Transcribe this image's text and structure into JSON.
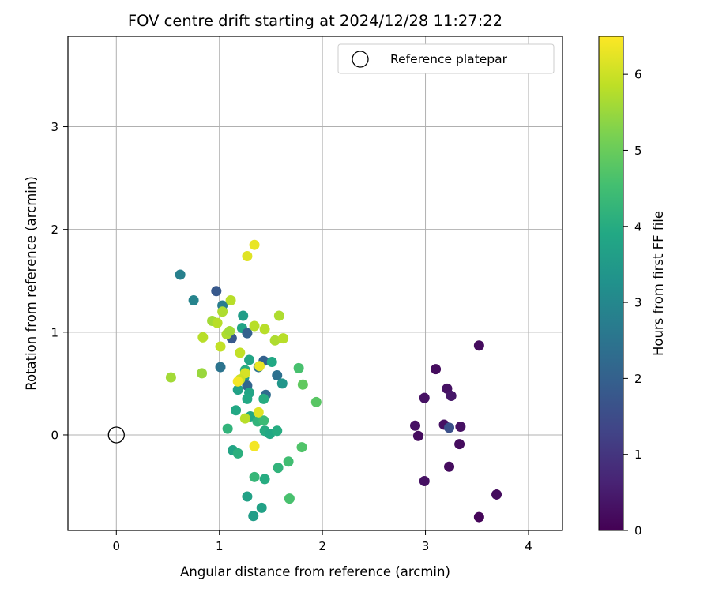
{
  "chart_data": {
    "type": "scatter",
    "title": "FOV centre drift starting at 2024/12/28 11:27:22",
    "xlabel": "Angular distance from reference (arcmin)",
    "ylabel": "Rotation from reference (arcmin)",
    "xlim": [
      -0.47,
      4.33
    ],
    "ylim": [
      -0.93,
      3.88
    ],
    "xticks": [
      0,
      1,
      2,
      3,
      4
    ],
    "yticks": [
      0,
      1,
      2,
      3
    ],
    "grid": true,
    "legend": {
      "position": "top-right",
      "entries": [
        "Reference platepar"
      ]
    },
    "colorbar": {
      "label": "Hours from first FF file",
      "range": [
        0,
        6.5
      ],
      "ticks": [
        0,
        1,
        2,
        3,
        4,
        5,
        6
      ],
      "colormap": "viridis"
    },
    "reference_point": {
      "x": 0,
      "y": 0,
      "label": "Reference platepar"
    },
    "series": [
      {
        "points": [
          {
            "x": 3.1,
            "y": 0.64,
            "c": 0.2
          },
          {
            "x": 3.52,
            "y": 0.87,
            "c": 0.2
          },
          {
            "x": 2.99,
            "y": 0.36,
            "c": 0.3
          },
          {
            "x": 3.21,
            "y": 0.45,
            "c": 0.3
          },
          {
            "x": 3.25,
            "y": 0.38,
            "c": 0.4
          },
          {
            "x": 2.9,
            "y": 0.09,
            "c": 0.3
          },
          {
            "x": 2.93,
            "y": -0.01,
            "c": 0.2
          },
          {
            "x": 3.18,
            "y": 0.1,
            "c": 0.3
          },
          {
            "x": 3.23,
            "y": 0.07,
            "c": 1.6
          },
          {
            "x": 3.34,
            "y": 0.08,
            "c": 0.3
          },
          {
            "x": 3.33,
            "y": -0.09,
            "c": 0.2
          },
          {
            "x": 2.99,
            "y": -0.45,
            "c": 0.3
          },
          {
            "x": 3.23,
            "y": -0.31,
            "c": 0.2
          },
          {
            "x": 3.69,
            "y": -0.58,
            "c": 0.2
          },
          {
            "x": 3.52,
            "y": -0.8,
            "c": 0.1
          },
          {
            "x": 0.62,
            "y": 1.56,
            "c": 2.8
          },
          {
            "x": 0.75,
            "y": 1.31,
            "c": 2.9
          },
          {
            "x": 0.97,
            "y": 1.4,
            "c": 1.8
          },
          {
            "x": 1.03,
            "y": 1.26,
            "c": 2.7
          },
          {
            "x": 1.23,
            "y": 1.16,
            "c": 3.6
          },
          {
            "x": 1.22,
            "y": 1.04,
            "c": 3.8
          },
          {
            "x": 1.27,
            "y": 0.99,
            "c": 2.0
          },
          {
            "x": 1.12,
            "y": 0.94,
            "c": 1.8
          },
          {
            "x": 1.01,
            "y": 0.66,
            "c": 2.5
          },
          {
            "x": 1.29,
            "y": 0.73,
            "c": 3.8
          },
          {
            "x": 1.38,
            "y": 0.66,
            "c": 2.5
          },
          {
            "x": 1.43,
            "y": 0.72,
            "c": 2.0
          },
          {
            "x": 1.51,
            "y": 0.71,
            "c": 3.9
          },
          {
            "x": 1.25,
            "y": 0.63,
            "c": 4.0
          },
          {
            "x": 1.24,
            "y": 0.56,
            "c": 3.5
          },
          {
            "x": 1.18,
            "y": 0.44,
            "c": 3.7
          },
          {
            "x": 1.27,
            "y": 0.48,
            "c": 2.1
          },
          {
            "x": 1.29,
            "y": 0.41,
            "c": 3.8
          },
          {
            "x": 1.45,
            "y": 0.39,
            "c": 2.3
          },
          {
            "x": 1.56,
            "y": 0.58,
            "c": 2.4
          },
          {
            "x": 1.61,
            "y": 0.5,
            "c": 3.4
          },
          {
            "x": 1.77,
            "y": 0.65,
            "c": 4.6
          },
          {
            "x": 1.94,
            "y": 0.32,
            "c": 4.8
          },
          {
            "x": 1.81,
            "y": 0.49,
            "c": 4.9
          },
          {
            "x": 1.43,
            "y": 0.35,
            "c": 4.0
          },
          {
            "x": 1.27,
            "y": 0.35,
            "c": 3.9
          },
          {
            "x": 1.16,
            "y": 0.24,
            "c": 3.9
          },
          {
            "x": 1.3,
            "y": 0.18,
            "c": 3.9
          },
          {
            "x": 1.37,
            "y": 0.13,
            "c": 4.2
          },
          {
            "x": 1.43,
            "y": 0.14,
            "c": 4.4
          },
          {
            "x": 1.08,
            "y": 0.06,
            "c": 4.2
          },
          {
            "x": 1.44,
            "y": 0.04,
            "c": 4.0
          },
          {
            "x": 1.49,
            "y": 0.01,
            "c": 3.9
          },
          {
            "x": 1.56,
            "y": 0.04,
            "c": 4.0
          },
          {
            "x": 1.13,
            "y": -0.15,
            "c": 3.8
          },
          {
            "x": 1.18,
            "y": -0.18,
            "c": 4.1
          },
          {
            "x": 1.8,
            "y": -0.12,
            "c": 4.7
          },
          {
            "x": 1.67,
            "y": -0.26,
            "c": 4.5
          },
          {
            "x": 1.57,
            "y": -0.32,
            "c": 4.2
          },
          {
            "x": 1.34,
            "y": -0.41,
            "c": 4.3
          },
          {
            "x": 1.44,
            "y": -0.43,
            "c": 4.0
          },
          {
            "x": 1.27,
            "y": -0.6,
            "c": 3.7
          },
          {
            "x": 1.68,
            "y": -0.62,
            "c": 4.6
          },
          {
            "x": 1.41,
            "y": -0.71,
            "c": 3.7
          },
          {
            "x": 1.33,
            "y": -0.79,
            "c": 3.6
          },
          {
            "x": 0.53,
            "y": 0.56,
            "c": 5.6
          },
          {
            "x": 0.83,
            "y": 0.6,
            "c": 5.5
          },
          {
            "x": 0.84,
            "y": 0.95,
            "c": 5.8
          },
          {
            "x": 0.93,
            "y": 1.11,
            "c": 5.6
          },
          {
            "x": 0.98,
            "y": 1.09,
            "c": 5.8
          },
          {
            "x": 1.03,
            "y": 1.2,
            "c": 5.7
          },
          {
            "x": 1.11,
            "y": 1.31,
            "c": 5.8
          },
          {
            "x": 1.07,
            "y": 0.98,
            "c": 5.7
          },
          {
            "x": 1.1,
            "y": 1.01,
            "c": 5.6
          },
          {
            "x": 1.01,
            "y": 0.86,
            "c": 5.9
          },
          {
            "x": 1.2,
            "y": 0.8,
            "c": 5.9
          },
          {
            "x": 1.27,
            "y": 1.74,
            "c": 6.2
          },
          {
            "x": 1.34,
            "y": 1.85,
            "c": 6.3
          },
          {
            "x": 1.34,
            "y": 1.06,
            "c": 5.8
          },
          {
            "x": 1.44,
            "y": 1.03,
            "c": 5.8
          },
          {
            "x": 1.58,
            "y": 1.16,
            "c": 5.7
          },
          {
            "x": 1.54,
            "y": 0.92,
            "c": 5.7
          },
          {
            "x": 1.62,
            "y": 0.94,
            "c": 5.8
          },
          {
            "x": 1.39,
            "y": 0.67,
            "c": 6.3
          },
          {
            "x": 1.25,
            "y": 0.6,
            "c": 6.1
          },
          {
            "x": 1.2,
            "y": 0.54,
            "c": 6.0
          },
          {
            "x": 1.18,
            "y": 0.52,
            "c": 6.4
          },
          {
            "x": 1.25,
            "y": 0.16,
            "c": 5.8
          },
          {
            "x": 1.38,
            "y": 0.22,
            "c": 6.2
          },
          {
            "x": 1.34,
            "y": -0.11,
            "c": 6.4
          }
        ]
      }
    ]
  }
}
